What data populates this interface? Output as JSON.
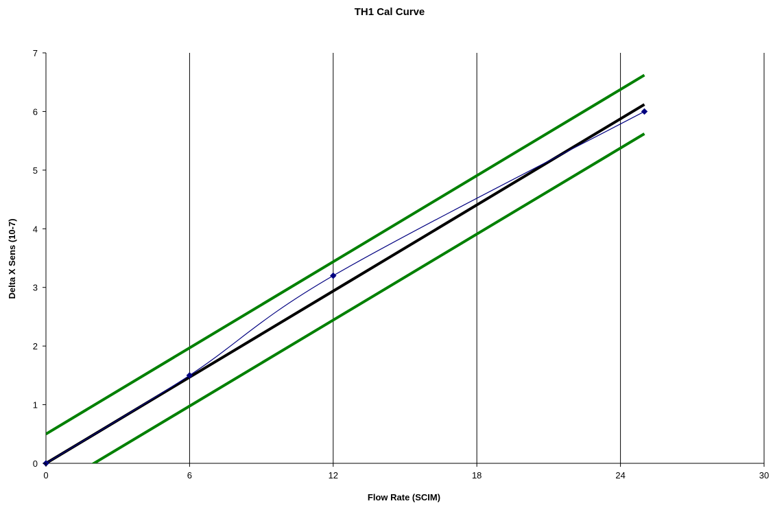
{
  "chart_data": {
    "type": "line",
    "title": "TH1 Cal Curve",
    "xlabel": "Flow Rate (SCIM)",
    "ylabel": "Delta X Sens (10-7)",
    "xlim": [
      0,
      30
    ],
    "ylim": [
      0,
      7
    ],
    "x_ticks": [
      "0",
      "6",
      "12",
      "18",
      "24",
      "30"
    ],
    "y_ticks": [
      "0",
      "1",
      "2",
      "3",
      "4",
      "5",
      "6",
      "7"
    ],
    "grid": "vertical",
    "legend": "none",
    "series": [
      {
        "role": "measured",
        "color": "#000080",
        "style": "smooth-line-with-diamond-markers",
        "points": [
          [
            0,
            0
          ],
          [
            6,
            1.5
          ],
          [
            12,
            3.2
          ],
          [
            25,
            6.0
          ]
        ]
      },
      {
        "role": "fit",
        "color": "#000000",
        "style": "thick-line",
        "points": [
          [
            0,
            0
          ],
          [
            25,
            6.12
          ]
        ]
      },
      {
        "role": "upper-limit",
        "color": "#008000",
        "style": "thick-line",
        "points": [
          [
            0,
            0.5
          ],
          [
            25,
            6.62
          ]
        ]
      },
      {
        "role": "lower-limit",
        "color": "#008000",
        "style": "thick-line",
        "points": [
          [
            1.8,
            -0.05
          ],
          [
            25,
            5.62
          ]
        ]
      }
    ]
  }
}
